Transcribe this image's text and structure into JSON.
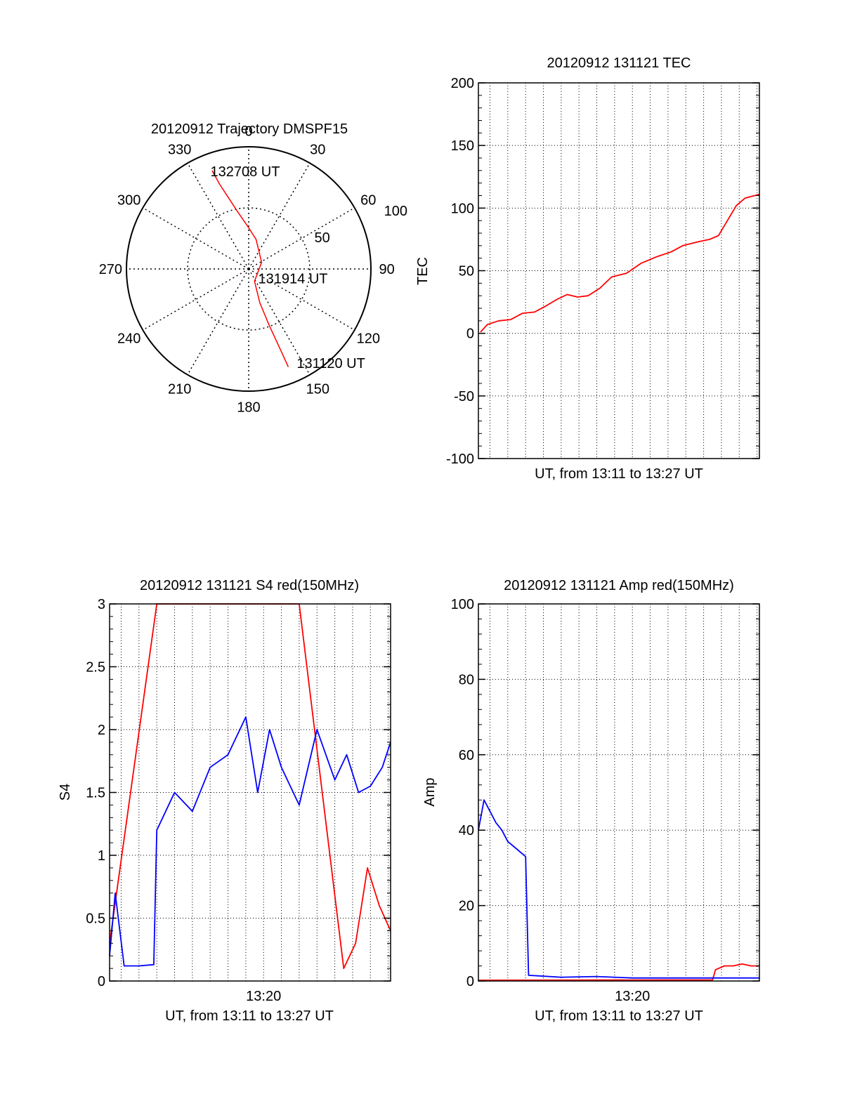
{
  "chart_data": [
    {
      "type": "polar",
      "title": "20120912 Trajectory DMSPF15",
      "angle_labels": [
        "0",
        "30",
        "60",
        "90",
        "120",
        "150",
        "180",
        "210",
        "240",
        "270",
        "300",
        "330"
      ],
      "radius_labels": [
        "50",
        "100"
      ],
      "rlim": [
        0,
        100
      ],
      "grid": true,
      "series": [
        {
          "color": "#ff0000",
          "points": [
            [
              339.6,
              85.9
            ],
            [
              341.0,
              73.8
            ],
            [
              344.0,
              61.1
            ],
            [
              348.8,
              48.2
            ],
            [
              358.7,
              34.9
            ],
            [
              14.0,
              25.0
            ],
            [
              62.9,
              11.9
            ],
            [
              154.7,
              11.1
            ],
            [
              161.8,
              29.2
            ],
            [
              160.0,
              49.1
            ],
            [
              158.6,
              69.9
            ],
            [
              158.0,
              86.5
            ]
          ]
        }
      ],
      "annotations": [
        {
          "text": "132708 UT",
          "angle": 338.6,
          "r": 85.9
        },
        {
          "text": "131914 UT",
          "angle": 135.0,
          "r": 11.0
        },
        {
          "text": "131120 UT",
          "angle": 153.0,
          "r": 86.5
        }
      ]
    },
    {
      "type": "line",
      "title": "20120912 131121 TEC",
      "xlabel": "UT, from 13:11 to 13:27 UT",
      "ylabel": "TEC",
      "xlim": [
        "13:11:21",
        "13:27:08"
      ],
      "ylim": [
        -100,
        200
      ],
      "yticks": [
        -100,
        -50,
        0,
        50,
        100,
        150,
        200
      ],
      "grid": true,
      "series": [
        {
          "color": "#ff0000",
          "x": [
            "13:11:28",
            "13:11:51",
            "13:12:30",
            "13:13:10",
            "13:13:50",
            "13:14:30",
            "13:15:10",
            "13:15:45",
            "13:16:20",
            "13:16:55",
            "13:17:30",
            "13:18:10",
            "13:18:50",
            "13:19:40",
            "13:20:30",
            "13:21:20",
            "13:22:10",
            "13:22:50",
            "13:23:40",
            "13:24:20",
            "13:24:50",
            "13:25:20",
            "13:25:50",
            "13:26:20",
            "13:27:08"
          ],
          "y": [
            1,
            7,
            10,
            11,
            16,
            17,
            22,
            27,
            31,
            29,
            30,
            36,
            45,
            48,
            56,
            61,
            65,
            70,
            73,
            75,
            78,
            90,
            102,
            108,
            111
          ]
        }
      ]
    },
    {
      "type": "line",
      "title": "20120912 131121 S4 red(150MHz)",
      "xlabel": "UT, from 13:11 to 13:27 UT",
      "ylabel": "S4",
      "xlim": [
        "13:11:21",
        "13:27:08"
      ],
      "ylim": [
        0,
        3
      ],
      "yticks": [
        0,
        0.5,
        1,
        1.5,
        2,
        2.5,
        3
      ],
      "xticks": [
        "13:20"
      ],
      "grid": true,
      "series": [
        {
          "color": "#ff0000",
          "x": [
            "13:11:21",
            "13:14:00",
            "13:16:00",
            "13:18:00",
            "13:20:00",
            "13:22:00",
            "13:24:30",
            "13:25:10",
            "13:25:50",
            "13:26:30",
            "13:27:08"
          ],
          "y": [
            0.3,
            3,
            3,
            3,
            3,
            3,
            0.1,
            0.3,
            0.9,
            0.6,
            0.4
          ]
        },
        {
          "color": "#0000ff",
          "x": [
            "13:11:21",
            "13:11:40",
            "13:12:10",
            "13:13:00",
            "13:13:50",
            "13:14:00",
            "13:15:00",
            "13:16:00",
            "13:17:00",
            "13:18:00",
            "13:19:00",
            "13:19:40",
            "13:20:20",
            "13:21:00",
            "13:22:00",
            "13:23:00",
            "13:24:00",
            "13:24:40",
            "13:25:20",
            "13:26:00",
            "13:26:40",
            "13:27:08"
          ],
          "y": [
            0.2,
            0.7,
            0.12,
            0.12,
            0.13,
            1.2,
            1.5,
            1.35,
            1.7,
            1.8,
            2.1,
            1.5,
            2.0,
            1.7,
            1.4,
            2.0,
            1.6,
            1.8,
            1.5,
            1.55,
            1.7,
            1.9
          ]
        }
      ]
    },
    {
      "type": "line",
      "title": "20120912 131121 Amp red(150MHz)",
      "xlabel": "UT, from 13:11 to 13:27 UT",
      "ylabel": "Amp",
      "xlim": [
        "13:11:21",
        "13:27:08"
      ],
      "ylim": [
        0,
        100
      ],
      "yticks": [
        0,
        20,
        40,
        60,
        80,
        100
      ],
      "xticks": [
        "13:20"
      ],
      "grid": true,
      "series": [
        {
          "color": "#ff0000",
          "x": [
            "13:11:21",
            "13:24:30",
            "13:24:40",
            "13:25:10",
            "13:25:40",
            "13:26:10",
            "13:26:40",
            "13:27:08"
          ],
          "y": [
            0.2,
            0.3,
            3,
            4,
            4,
            4.5,
            4,
            4
          ]
        },
        {
          "color": "#0000ff",
          "x": [
            "13:11:21",
            "13:11:40",
            "13:12:00",
            "13:12:20",
            "13:12:40",
            "13:13:00",
            "13:13:30",
            "13:14:00",
            "13:14:10",
            "13:16:00",
            "13:18:00",
            "13:20:00",
            "13:22:00",
            "13:24:00",
            "13:26:00",
            "13:27:08"
          ],
          "y": [
            40,
            48,
            45,
            42,
            40,
            37,
            35,
            33,
            1.5,
            1.0,
            1.2,
            0.8,
            0.8,
            0.8,
            0.8,
            0.8
          ]
        }
      ]
    }
  ]
}
